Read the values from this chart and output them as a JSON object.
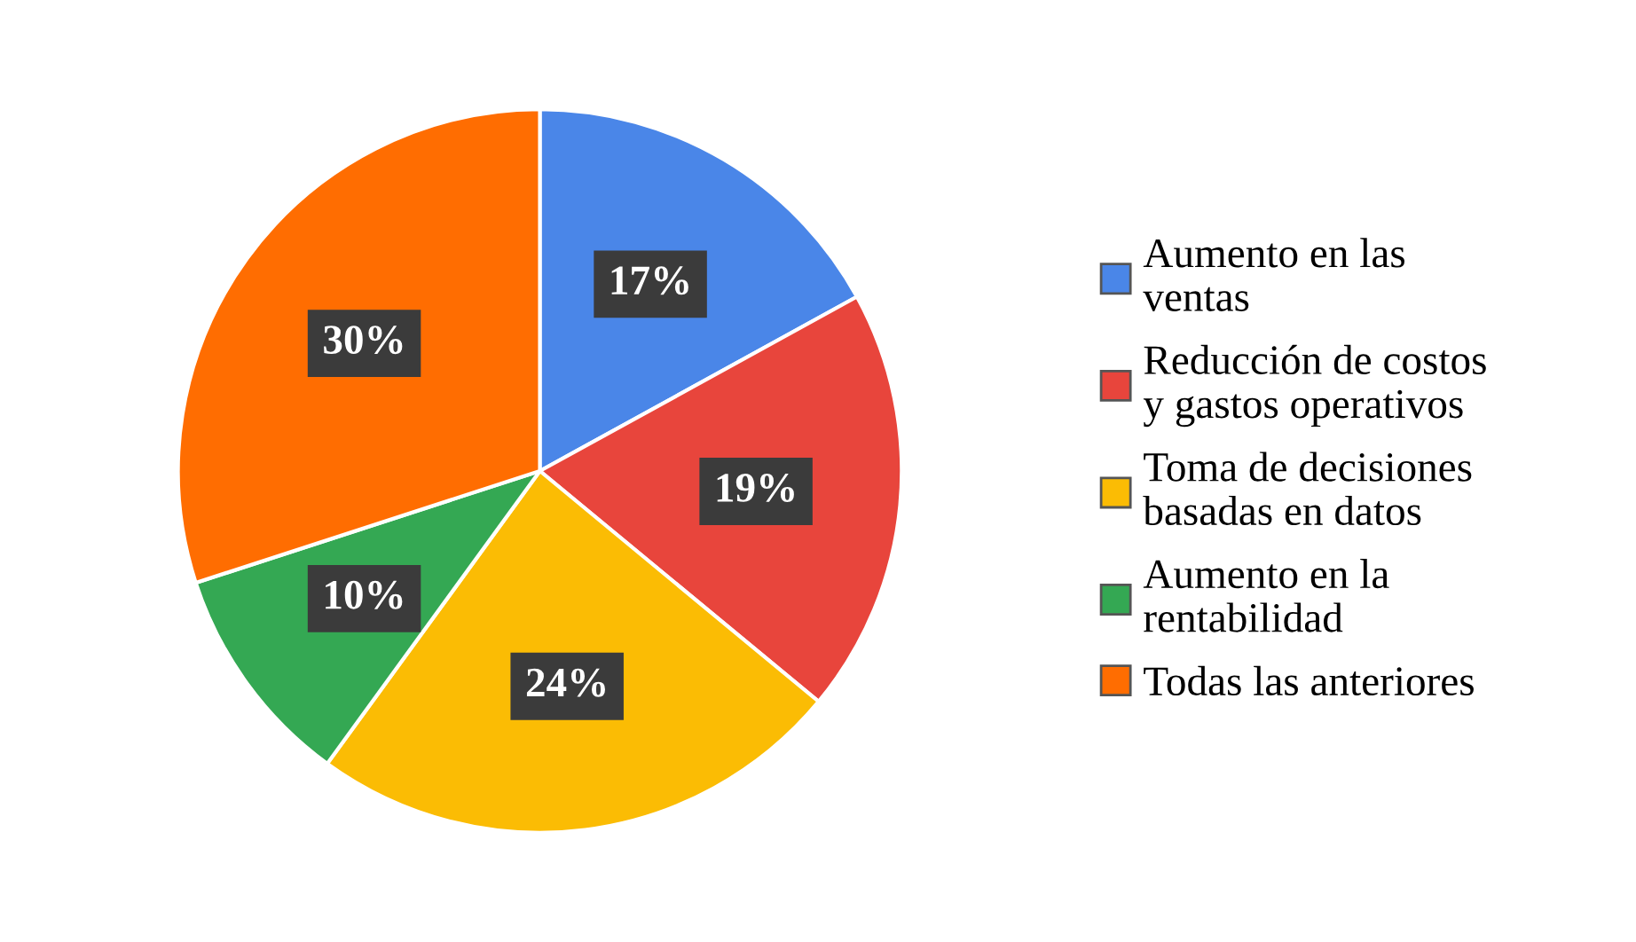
{
  "chart_data": {
    "type": "pie",
    "categories": [
      "Aumento en las\nventas",
      "Reducción de costos\ny gastos operativos",
      "Toma de decisiones\nbasadas en datos",
      "Aumento en la\nrentabilidad",
      "Todas las anteriores"
    ],
    "values": [
      17,
      19,
      24,
      10,
      30
    ],
    "colors": [
      "#4a86e8",
      "#e8453c",
      "#fbbc04",
      "#34a853",
      "#ff6d01"
    ],
    "value_labels": [
      "17%",
      "19%",
      "24%",
      "10%",
      "30%"
    ],
    "legend": "right"
  }
}
